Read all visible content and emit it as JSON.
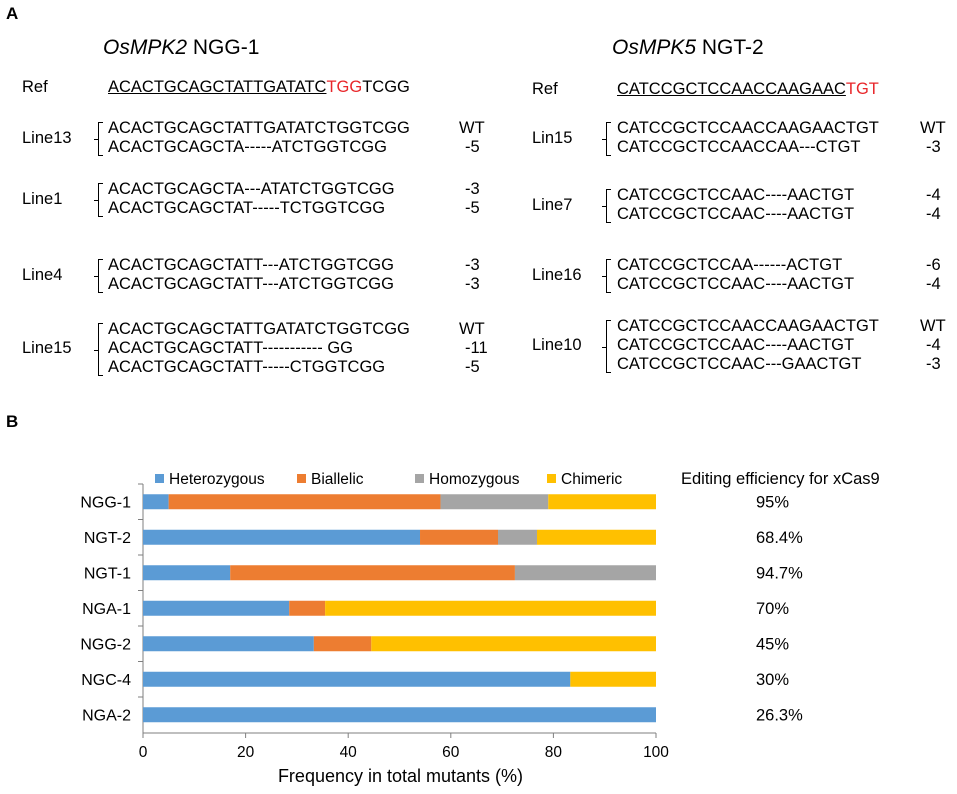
{
  "panel_a": {
    "letter": "A",
    "left": {
      "gene": "OsMPK2",
      "site": "NGG-1",
      "ref_label": "Ref",
      "ref_seq": "ACACTGCAGCTATTGATATC",
      "ref_pam": "TGG",
      "ref_tail": "TCGG",
      "lines": [
        {
          "label": "Line13",
          "alleles": [
            {
              "seq": "ACACTGCAGCTATTGATATCTGGTCGG",
              "mut": "WT"
            },
            {
              "seq": "ACACTGCAGCTA-----ATCTGGTCGG",
              "mut": "-5"
            }
          ]
        },
        {
          "label": "Line1",
          "alleles": [
            {
              "seq": "ACACTGCAGCTA---ATATCTGGTCGG",
              "mut": "-3"
            },
            {
              "seq": "ACACTGCAGCTAT-----TCTGGTCGG",
              "mut": "-5"
            }
          ]
        },
        {
          "label": "Line4",
          "alleles": [
            {
              "seq": "ACACTGCAGCTATT---ATCTGGTCGG",
              "mut": "-3"
            },
            {
              "seq": "ACACTGCAGCTATT---ATCTGGTCGG",
              "mut": "-3"
            }
          ]
        },
        {
          "label": "Line15",
          "alleles": [
            {
              "seq": "ACACTGCAGCTATTGATATCTGGTCGG",
              "mut": "WT"
            },
            {
              "seq": "ACACTGCAGCTATT----------- GG",
              "mut": "-11"
            },
            {
              "seq": "ACACTGCAGCTATT-----CTGGTCGG",
              "mut": "-5"
            }
          ]
        }
      ]
    },
    "right": {
      "gene": "OsMPK5",
      "site": "NGT-2",
      "ref_label": "Ref",
      "ref_seq": "CATCCGCTCCAACCAAGAAC",
      "ref_pam": "TGT",
      "ref_tail": "",
      "lines": [
        {
          "label": "Lin15",
          "alleles": [
            {
              "seq": "CATCCGCTCCAACCAAGAACTGT",
              "mut": "WT"
            },
            {
              "seq": "CATCCGCTCCAACCAA---CTGT",
              "mut": "-3"
            }
          ]
        },
        {
          "label": "Line7",
          "alleles": [
            {
              "seq": "CATCCGCTCCAAC----AACTGT",
              "mut": "-4"
            },
            {
              "seq": "CATCCGCTCCAAC----AACTGT",
              "mut": "-4"
            }
          ]
        },
        {
          "label": "Line16",
          "alleles": [
            {
              "seq": "CATCCGCTCCAA------ACTGT",
              "mut": "-6"
            },
            {
              "seq": "CATCCGCTCCAAC----AACTGT",
              "mut": "-4"
            }
          ]
        },
        {
          "label": "Line10",
          "alleles": [
            {
              "seq": "CATCCGCTCCAACCAAGAACTGT",
              "mut": "WT"
            },
            {
              "seq": "CATCCGCTCCAAC----AACTGT",
              "mut": "-4"
            },
            {
              "seq": "CATCCGCTCCAAC---GAACTGT",
              "mut": "-3"
            }
          ]
        }
      ]
    }
  },
  "panel_b": {
    "letter": "B",
    "efficiency_header": "Editing efficiency for xCas9"
  },
  "chart_data": {
    "type": "bar",
    "orientation": "horizontal",
    "stacked": true,
    "categories": [
      "NGG-1",
      "NGT-2",
      "NGT-1",
      "NGA-1",
      "NGG-2",
      "NGC-4",
      "NGA-2"
    ],
    "series": [
      {
        "name": "Heterozygous",
        "color": "#5b9bd5",
        "values": [
          5,
          54,
          17,
          28.5,
          33.3,
          83.3,
          100
        ]
      },
      {
        "name": "Biallelic",
        "color": "#ed7d31",
        "values": [
          53,
          15.2,
          55.5,
          7,
          11.2,
          0,
          0
        ]
      },
      {
        "name": "Homozygous",
        "color": "#a5a5a5",
        "values": [
          21,
          7.6,
          27.5,
          0,
          0,
          0,
          0
        ]
      },
      {
        "name": "Chimeric",
        "color": "#ffc000",
        "values": [
          21,
          23.2,
          0,
          64.5,
          55.5,
          16.7,
          0
        ]
      }
    ],
    "efficiency": [
      "95%",
      "68.4%",
      "94.7%",
      "70%",
      "45%",
      "30%",
      "26.3%"
    ],
    "xlabel": "Frequency in total mutants (%)",
    "xlim": [
      0,
      100
    ],
    "xticks": [
      "0",
      "20",
      "40",
      "60",
      "80",
      "100"
    ],
    "grid": false,
    "legend": "top"
  }
}
